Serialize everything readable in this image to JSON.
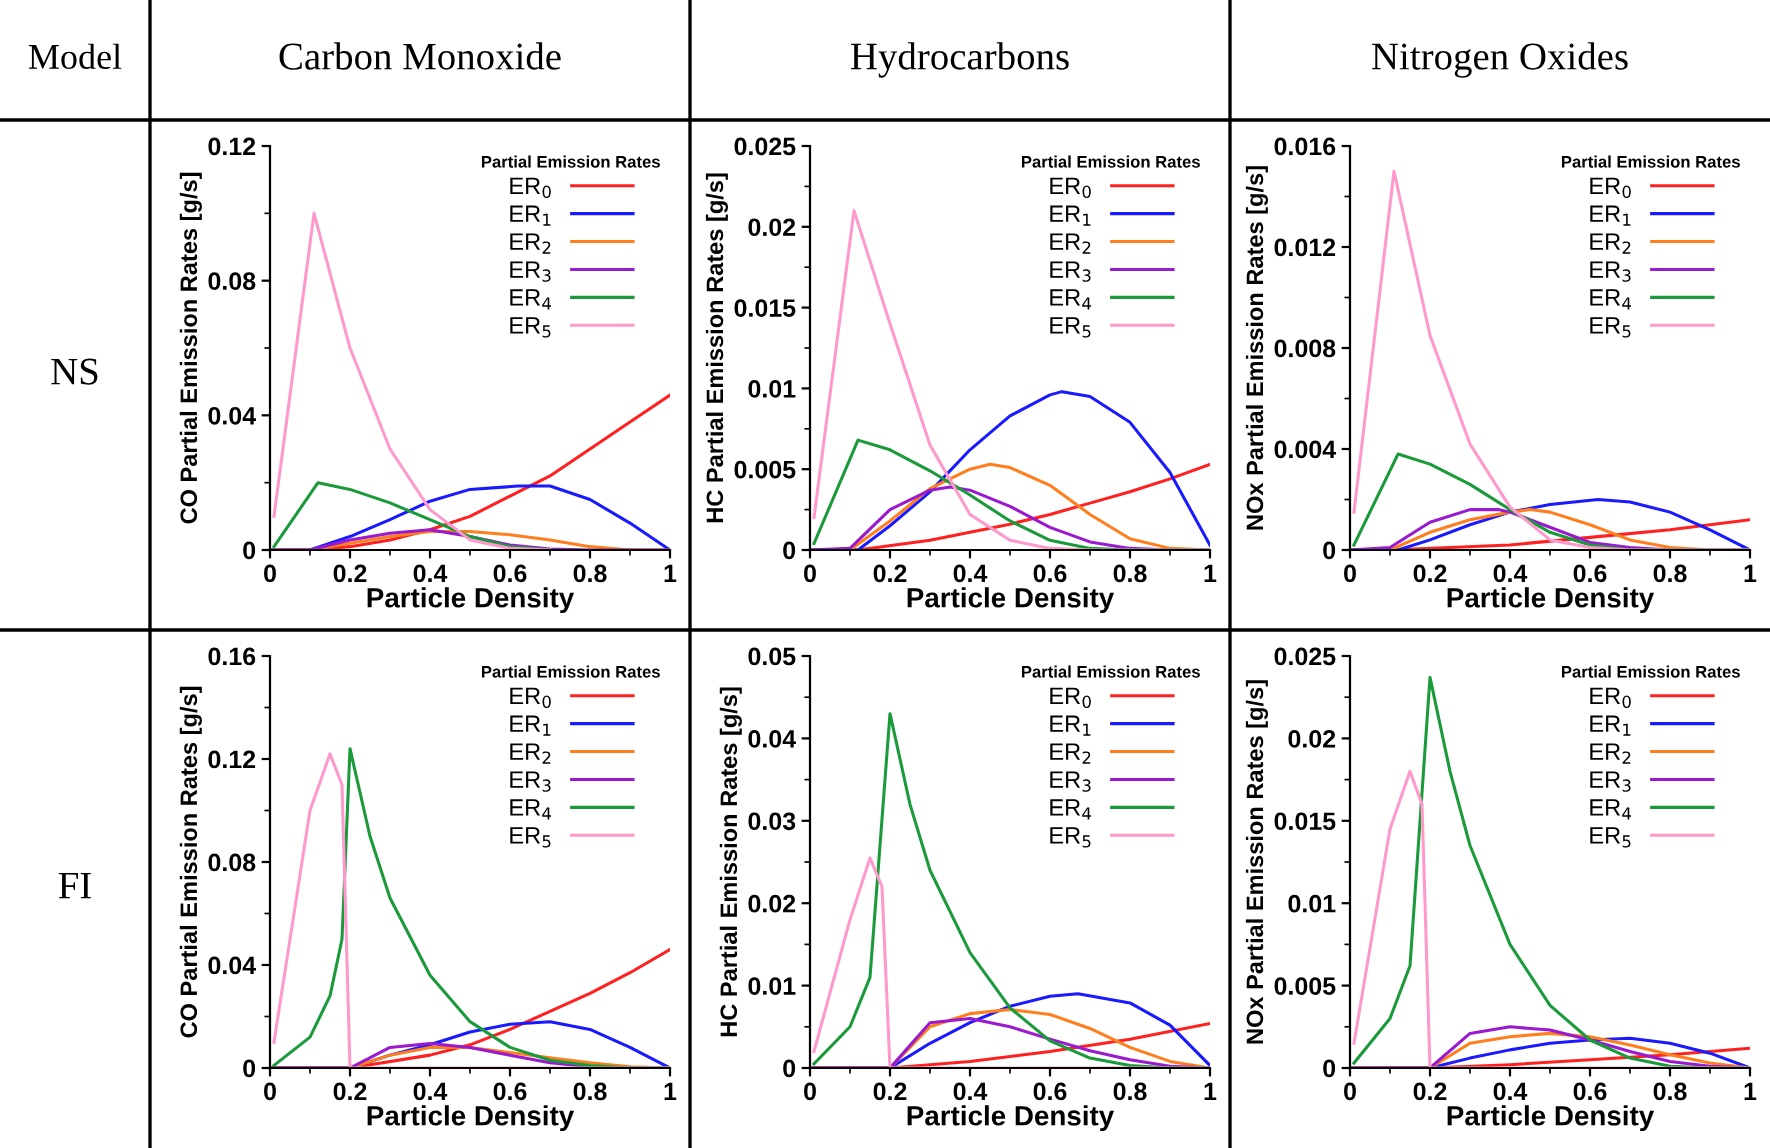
{
  "chart_data": [
    {
      "type": "line",
      "title": "Carbon Monoxide",
      "annotations": [
        "Model",
        "NS"
      ],
      "xlabel": "Particle Density",
      "ylabel": "CO Partial Emission Rates [g/s]",
      "xlim": [
        0,
        1
      ],
      "xticks": [
        0,
        0.2,
        0.4,
        0.6,
        0.8,
        1
      ],
      "ylim": [
        0,
        0.12
      ],
      "yticks": [
        0,
        0.04,
        0.08,
        0.12
      ],
      "legend_title": "Partial Emission Rates",
      "legend": "top right",
      "series": [
        {
          "name": "ER$_{0}$",
          "color": "#ff2020",
          "x": [
            0,
            0.1,
            0.2,
            0.3,
            0.4,
            0.5,
            0.6,
            0.7,
            0.8,
            0.9,
            1
          ],
          "values": [
            0,
            0,
            0.001,
            0.003,
            0.006,
            0.01,
            0.016,
            0.022,
            0.03,
            0.038,
            0.046
          ]
        },
        {
          "name": "ER$_{1}$",
          "color": "#1a1aff",
          "x": [
            0,
            0.1,
            0.2,
            0.3,
            0.4,
            0.5,
            0.62,
            0.7,
            0.8,
            0.9,
            1
          ],
          "values": [
            0,
            0,
            0.004,
            0.009,
            0.0145,
            0.018,
            0.019,
            0.019,
            0.015,
            0.008,
            0
          ]
        },
        {
          "name": "ER$_{2}$",
          "color": "#ff7f1e",
          "x": [
            0,
            0.1,
            0.2,
            0.3,
            0.4,
            0.5,
            0.6,
            0.7,
            0.8,
            0.9,
            1
          ],
          "values": [
            0,
            0,
            0.002,
            0.004,
            0.0055,
            0.0055,
            0.0045,
            0.003,
            0.001,
            0,
            0
          ]
        },
        {
          "name": "ER$_{3}$",
          "color": "#9a1ad0",
          "x": [
            0,
            0.1,
            0.2,
            0.3,
            0.4,
            0.5,
            0.6,
            0.7,
            0.8,
            1
          ],
          "values": [
            0,
            0,
            0.003,
            0.005,
            0.006,
            0.004,
            0.0015,
            0.0003,
            0,
            0
          ]
        },
        {
          "name": "ER$_{4}$",
          "color": "#1a9a3a",
          "x": [
            0.01,
            0.12,
            0.2,
            0.3,
            0.4,
            0.5,
            0.6,
            0.7
          ],
          "values": [
            0.001,
            0.02,
            0.018,
            0.014,
            0.009,
            0.004,
            0.001,
            0
          ]
        },
        {
          "name": "ER$_{5}$",
          "color": "#ff99cc",
          "x": [
            0.01,
            0.11,
            0.2,
            0.3,
            0.4,
            0.5,
            0.6,
            0.7
          ],
          "values": [
            0.01,
            0.1,
            0.06,
            0.03,
            0.012,
            0.003,
            0.0005,
            0
          ]
        }
      ]
    },
    {
      "type": "line",
      "title": "Hydrocarbons",
      "xlabel": "Particle Density",
      "ylabel": "HC Partial Emission Rates [g/s]",
      "xlim": [
        0,
        1
      ],
      "xticks": [
        0,
        0.2,
        0.4,
        0.6,
        0.8,
        1
      ],
      "ylim": [
        0,
        0.025
      ],
      "yticks": [
        0,
        0.005,
        0.01,
        0.015,
        0.02,
        0.025
      ],
      "legend_title": "Partial Emission Rates",
      "legend": "top right",
      "series": [
        {
          "name": "ER$_{0}$",
          "color": "#ff2020",
          "x": [
            0,
            0.12,
            0.3,
            0.4,
            0.5,
            0.6,
            0.7,
            0.8,
            0.9,
            1
          ],
          "values": [
            0,
            0,
            0.0006,
            0.0011,
            0.0016,
            0.0022,
            0.0029,
            0.0036,
            0.0044,
            0.0053
          ]
        },
        {
          "name": "ER$_{1}$",
          "color": "#1a1aff",
          "x": [
            0,
            0.12,
            0.2,
            0.3,
            0.4,
            0.5,
            0.6,
            0.63,
            0.7,
            0.8,
            0.9,
            1
          ],
          "values": [
            0,
            0,
            0.0015,
            0.0036,
            0.0062,
            0.0083,
            0.0096,
            0.0098,
            0.0095,
            0.0079,
            0.0048,
            0.0003
          ]
        },
        {
          "name": "ER$_{2}$",
          "color": "#ff7f1e",
          "x": [
            0,
            0.1,
            0.2,
            0.3,
            0.4,
            0.45,
            0.5,
            0.6,
            0.7,
            0.8,
            0.9,
            1
          ],
          "values": [
            0,
            0,
            0.0018,
            0.0038,
            0.005,
            0.0053,
            0.0051,
            0.004,
            0.0022,
            0.0007,
            0.0001,
            0
          ]
        },
        {
          "name": "ER$_{3}$",
          "color": "#9a1ad0",
          "x": [
            0,
            0.1,
            0.2,
            0.3,
            0.35,
            0.4,
            0.5,
            0.6,
            0.7,
            0.8,
            0.9,
            1
          ],
          "values": [
            0,
            0.0001,
            0.0025,
            0.0037,
            0.0039,
            0.0037,
            0.0027,
            0.0014,
            0.0005,
            0.0001,
            0,
            0
          ]
        },
        {
          "name": "ER$_{4}$",
          "color": "#1a9a3a",
          "x": [
            0.01,
            0.12,
            0.2,
            0.3,
            0.4,
            0.5,
            0.6,
            0.7,
            0.8,
            1
          ],
          "values": [
            0.0004,
            0.0068,
            0.0062,
            0.0049,
            0.0034,
            0.0018,
            0.0006,
            0.0001,
            0,
            0
          ]
        },
        {
          "name": "ER$_{5}$",
          "color": "#ff99cc",
          "x": [
            0.01,
            0.11,
            0.2,
            0.3,
            0.4,
            0.5,
            0.6,
            0.7,
            1
          ],
          "values": [
            0.002,
            0.021,
            0.014,
            0.0065,
            0.0022,
            0.0006,
            0.0001,
            0,
            0
          ]
        }
      ]
    },
    {
      "type": "line",
      "title": "Nitrogen Oxides",
      "xlabel": "Particle Density",
      "ylabel": "NOx Partial Emission Rates [g/s]",
      "xlim": [
        0,
        1
      ],
      "xticks": [
        0,
        0.2,
        0.4,
        0.6,
        0.8,
        1
      ],
      "ylim": [
        0,
        0.016
      ],
      "yticks": [
        0,
        0.004,
        0.008,
        0.012,
        0.016
      ],
      "legend_title": "Partial Emission Rates",
      "legend": "top right",
      "series": [
        {
          "name": "ER$_{0}$",
          "color": "#ff2020",
          "x": [
            0,
            0.1,
            0.4,
            0.6,
            0.8,
            1
          ],
          "values": [
            0,
            0,
            0.0002,
            0.0005,
            0.0008,
            0.0012
          ]
        },
        {
          "name": "ER$_{1}$",
          "color": "#1a1aff",
          "x": [
            0,
            0.12,
            0.2,
            0.3,
            0.4,
            0.5,
            0.62,
            0.7,
            0.8,
            0.9,
            1
          ],
          "values": [
            0,
            0,
            0.0004,
            0.001,
            0.0015,
            0.0018,
            0.002,
            0.0019,
            0.0015,
            0.0008,
            0
          ]
        },
        {
          "name": "ER$_{2}$",
          "color": "#ff7f1e",
          "x": [
            0,
            0.1,
            0.2,
            0.3,
            0.4,
            0.45,
            0.5,
            0.6,
            0.7,
            0.8,
            0.9,
            1
          ],
          "values": [
            0,
            0,
            0.0007,
            0.0012,
            0.0015,
            0.0016,
            0.0015,
            0.001,
            0.0004,
            0.0001,
            0,
            0
          ]
        },
        {
          "name": "ER$_{3}$",
          "color": "#9a1ad0",
          "x": [
            0,
            0.1,
            0.2,
            0.3,
            0.37,
            0.4,
            0.5,
            0.6,
            0.7,
            0.8,
            1
          ],
          "values": [
            0,
            0.0001,
            0.0011,
            0.0016,
            0.0016,
            0.0015,
            0.0009,
            0.0003,
            0.0001,
            0,
            0
          ]
        },
        {
          "name": "ER$_{4}$",
          "color": "#1a9a3a",
          "x": [
            0.01,
            0.12,
            0.2,
            0.3,
            0.4,
            0.5,
            0.6,
            0.7,
            1
          ],
          "values": [
            0.0002,
            0.0038,
            0.0034,
            0.0026,
            0.0016,
            0.0007,
            0.0002,
            0,
            0
          ]
        },
        {
          "name": "ER$_{5}$",
          "color": "#ff99cc",
          "x": [
            0.01,
            0.11,
            0.2,
            0.3,
            0.4,
            0.5,
            0.6,
            0.7,
            1
          ],
          "values": [
            0.0015,
            0.015,
            0.0085,
            0.0042,
            0.0017,
            0.0004,
            0.0001,
            0,
            0
          ]
        }
      ]
    },
    {
      "type": "line",
      "annotations": [
        "FI"
      ],
      "xlabel": "Particle Density",
      "ylabel": "CO Partial Emission Rates [g/s]",
      "xlim": [
        0,
        1
      ],
      "xticks": [
        0,
        0.2,
        0.4,
        0.6,
        0.8,
        1
      ],
      "ylim": [
        0,
        0.16
      ],
      "yticks": [
        0,
        0.04,
        0.08,
        0.12,
        0.16
      ],
      "legend_title": "Partial Emission Rates",
      "legend": "top right",
      "series": [
        {
          "name": "ER$_{0}$",
          "color": "#ff2020",
          "x": [
            0,
            0.2,
            0.4,
            0.5,
            0.6,
            0.7,
            0.8,
            0.9,
            1
          ],
          "values": [
            0,
            0,
            0.005,
            0.009,
            0.015,
            0.022,
            0.029,
            0.037,
            0.046
          ]
        },
        {
          "name": "ER$_{1}$",
          "color": "#1a1aff",
          "x": [
            0,
            0.2,
            0.3,
            0.4,
            0.5,
            0.6,
            0.7,
            0.8,
            0.9,
            1
          ],
          "values": [
            0,
            0,
            0.005,
            0.009,
            0.014,
            0.017,
            0.018,
            0.015,
            0.008,
            0
          ]
        },
        {
          "name": "ER$_{2}$",
          "color": "#ff7f1e",
          "x": [
            0,
            0.2,
            0.3,
            0.4,
            0.5,
            0.6,
            0.7,
            0.8,
            0.9,
            1
          ],
          "values": [
            0,
            0,
            0.005,
            0.008,
            0.008,
            0.006,
            0.004,
            0.002,
            0.0005,
            0
          ]
        },
        {
          "name": "ER$_{3}$",
          "color": "#9a1ad0",
          "x": [
            0,
            0.2,
            0.3,
            0.4,
            0.5,
            0.6,
            0.7,
            0.8,
            0.9,
            1
          ],
          "values": [
            0,
            0,
            0.008,
            0.0095,
            0.008,
            0.005,
            0.002,
            0.0005,
            0,
            0
          ]
        },
        {
          "name": "ER$_{4}$",
          "color": "#1a9a3a",
          "x": [
            0.01,
            0.1,
            0.15,
            0.18,
            0.2,
            0.25,
            0.3,
            0.4,
            0.5,
            0.6,
            0.7,
            0.8,
            0.9,
            1
          ],
          "values": [
            0.001,
            0.012,
            0.028,
            0.05,
            0.124,
            0.09,
            0.066,
            0.036,
            0.018,
            0.008,
            0.003,
            0.001,
            0,
            0
          ]
        },
        {
          "name": "ER$_{5}$",
          "color": "#ff99cc",
          "x": [
            0.01,
            0.05,
            0.1,
            0.15,
            0.18,
            0.2,
            1
          ],
          "values": [
            0.01,
            0.05,
            0.1,
            0.122,
            0.11,
            0,
            0
          ]
        }
      ]
    },
    {
      "type": "line",
      "xlabel": "Particle Density",
      "ylabel": "HC Partial Emission Rates [g/s]",
      "xlim": [
        0,
        1
      ],
      "xticks": [
        0,
        0.2,
        0.4,
        0.6,
        0.8,
        1
      ],
      "ylim": [
        0,
        0.05
      ],
      "yticks": [
        0,
        0.01,
        0.02,
        0.03,
        0.04,
        0.05
      ],
      "legend_title": "Partial Emission Rates",
      "legend": "top right",
      "series": [
        {
          "name": "ER$_{0}$",
          "color": "#ff2020",
          "x": [
            0,
            0.2,
            0.4,
            0.6,
            0.8,
            1
          ],
          "values": [
            0,
            0,
            0.0008,
            0.002,
            0.0035,
            0.0054
          ]
        },
        {
          "name": "ER$_{1}$",
          "color": "#1a1aff",
          "x": [
            0,
            0.2,
            0.3,
            0.4,
            0.5,
            0.6,
            0.67,
            0.8,
            0.9,
            1
          ],
          "values": [
            0,
            0,
            0.003,
            0.0055,
            0.0075,
            0.0087,
            0.009,
            0.0079,
            0.0052,
            0.0003
          ]
        },
        {
          "name": "ER$_{2}$",
          "color": "#ff7f1e",
          "x": [
            0,
            0.2,
            0.3,
            0.4,
            0.5,
            0.6,
            0.7,
            0.8,
            0.9,
            1
          ],
          "values": [
            0,
            0,
            0.005,
            0.0066,
            0.0071,
            0.0065,
            0.0048,
            0.0025,
            0.0008,
            0
          ]
        },
        {
          "name": "ER$_{3}$",
          "color": "#9a1ad0",
          "x": [
            0,
            0.2,
            0.3,
            0.4,
            0.5,
            0.6,
            0.7,
            0.8,
            0.9,
            1
          ],
          "values": [
            0,
            0,
            0.0055,
            0.006,
            0.005,
            0.0035,
            0.0021,
            0.001,
            0.0002,
            0
          ]
        },
        {
          "name": "ER$_{4}$",
          "color": "#1a9a3a",
          "x": [
            0.01,
            0.1,
            0.15,
            0.2,
            0.25,
            0.3,
            0.4,
            0.5,
            0.6,
            0.7,
            0.8,
            0.9,
            1
          ],
          "values": [
            0.0005,
            0.005,
            0.011,
            0.043,
            0.032,
            0.024,
            0.014,
            0.0073,
            0.0033,
            0.0012,
            0.0003,
            0,
            0
          ]
        },
        {
          "name": "ER$_{5}$",
          "color": "#ff99cc",
          "x": [
            0.01,
            0.1,
            0.15,
            0.18,
            0.2,
            1
          ],
          "values": [
            0.002,
            0.018,
            0.0255,
            0.022,
            0,
            0
          ]
        }
      ]
    },
    {
      "type": "line",
      "xlabel": "Particle Density",
      "ylabel": "NOx Partial Emission Rates [g/s]",
      "xlim": [
        0,
        1
      ],
      "xticks": [
        0,
        0.2,
        0.4,
        0.6,
        0.8,
        1
      ],
      "ylim": [
        0,
        0.025
      ],
      "yticks": [
        0,
        0.005,
        0.01,
        0.015,
        0.02,
        0.025
      ],
      "legend_title": "Partial Emission Rates",
      "legend": "top right",
      "series": [
        {
          "name": "ER$_{0}$",
          "color": "#ff2020",
          "x": [
            0,
            0.2,
            0.4,
            0.6,
            0.8,
            1
          ],
          "values": [
            0,
            0,
            0.0002,
            0.0005,
            0.0008,
            0.0012
          ]
        },
        {
          "name": "ER$_{1}$",
          "color": "#1a1aff",
          "x": [
            0,
            0.2,
            0.3,
            0.4,
            0.5,
            0.6,
            0.7,
            0.8,
            0.9,
            1
          ],
          "values": [
            0,
            0,
            0.0006,
            0.0011,
            0.0015,
            0.0017,
            0.0018,
            0.0015,
            0.0009,
            0
          ]
        },
        {
          "name": "ER$_{2}$",
          "color": "#ff7f1e",
          "x": [
            0,
            0.2,
            0.3,
            0.4,
            0.5,
            0.6,
            0.7,
            0.8,
            0.9,
            1
          ],
          "values": [
            0,
            0,
            0.0015,
            0.0019,
            0.0021,
            0.0019,
            0.0014,
            0.0008,
            0.0003,
            0
          ]
        },
        {
          "name": "ER$_{3}$",
          "color": "#9a1ad0",
          "x": [
            0,
            0.2,
            0.3,
            0.4,
            0.5,
            0.6,
            0.7,
            0.8,
            0.9,
            1
          ],
          "values": [
            0,
            0,
            0.0021,
            0.0025,
            0.0023,
            0.0017,
            0.001,
            0.0004,
            0.0001,
            0
          ]
        },
        {
          "name": "ER$_{4}$",
          "color": "#1a9a3a",
          "x": [
            0.01,
            0.1,
            0.15,
            0.2,
            0.25,
            0.3,
            0.4,
            0.5,
            0.6,
            0.7,
            0.8,
            0.9,
            1
          ],
          "values": [
            0.0003,
            0.003,
            0.0062,
            0.0237,
            0.018,
            0.0135,
            0.0075,
            0.0038,
            0.0017,
            0.0006,
            0.0001,
            0,
            0
          ]
        },
        {
          "name": "ER$_{5}$",
          "color": "#ff99cc",
          "x": [
            0.01,
            0.1,
            0.15,
            0.18,
            0.2,
            1
          ],
          "values": [
            0.0015,
            0.0145,
            0.018,
            0.016,
            0,
            0
          ]
        }
      ]
    }
  ]
}
